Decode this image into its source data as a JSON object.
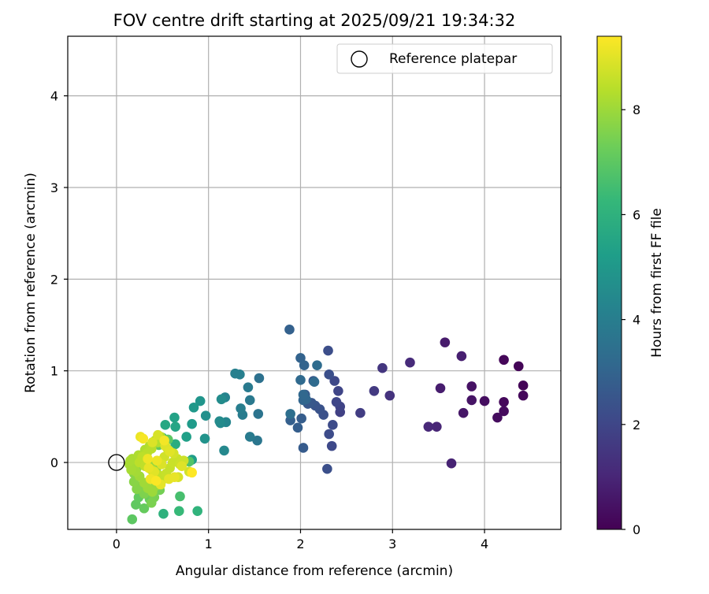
{
  "chart_data": {
    "type": "scatter",
    "title": "FOV centre drift starting at 2025/09/21 19:34:32",
    "xlabel": "Angular distance from reference (arcmin)",
    "ylabel": "Rotation from reference (arcmin)",
    "xlim": [
      -0.53,
      4.83
    ],
    "ylim": [
      -0.73,
      4.65
    ],
    "xticks": [
      0,
      1,
      2,
      3,
      4
    ],
    "yticks": [
      0,
      1,
      2,
      3,
      4
    ],
    "grid": true,
    "legend": {
      "placement": "upper-right",
      "entries": [
        "Reference platepar"
      ]
    },
    "reference_point": {
      "x": 0,
      "y": 0,
      "label": "Reference platepar"
    },
    "colorbar": {
      "label": "Hours from first FF file",
      "range": [
        0,
        9.4
      ],
      "ticks": [
        0,
        2,
        4,
        6,
        8
      ],
      "colormap": "viridis"
    },
    "series": [
      {
        "color_by": "hours",
        "x": [
          4.42,
          4.37,
          4.21,
          4.42,
          4.21,
          4.21,
          4.14,
          4.0,
          3.86,
          3.86,
          3.77,
          3.57,
          3.52,
          3.75,
          3.64,
          3.48,
          3.39,
          3.19,
          2.97,
          2.89,
          2.8,
          2.65,
          2.43,
          2.43,
          2.41,
          2.39,
          2.37,
          2.34,
          2.35,
          2.31,
          2.3,
          2.29,
          2.31,
          2.25,
          2.21,
          2.16,
          2.14,
          2.12,
          2.08,
          2.05,
          2.03,
          2.01,
          1.97,
          1.89,
          1.88,
          2.0,
          2.04,
          2.03,
          2.06,
          2.03,
          2.0,
          2.15,
          2.18,
          1.89
        ],
        "y": [
          0.84,
          1.05,
          1.12,
          0.73,
          0.66,
          0.56,
          0.49,
          0.67,
          0.83,
          0.68,
          0.54,
          1.31,
          0.81,
          1.16,
          -0.01,
          0.39,
          0.39,
          1.09,
          0.73,
          1.03,
          0.78,
          0.54,
          0.55,
          0.61,
          0.78,
          0.66,
          0.89,
          0.18,
          0.41,
          0.31,
          1.22,
          -0.07,
          0.96,
          0.52,
          0.58,
          0.62,
          0.89,
          0.65,
          0.64,
          0.74,
          0.16,
          0.48,
          0.38,
          0.46,
          1.45,
          1.14,
          1.06,
          0.68,
          0.69,
          0.74,
          0.9,
          0.88,
          1.06,
          0.53
        ],
        "hours": [
          0.1,
          0.1,
          0.15,
          0.2,
          0.2,
          0.25,
          0.3,
          0.35,
          0.45,
          0.5,
          0.55,
          0.7,
          0.75,
          0.8,
          0.9,
          1.0,
          1.05,
          1.15,
          1.4,
          1.5,
          1.6,
          1.7,
          1.8,
          1.9,
          1.95,
          2.0,
          2.05,
          2.1,
          2.15,
          2.2,
          2.25,
          2.3,
          2.3,
          2.35,
          2.4,
          2.45,
          2.5,
          2.55,
          2.6,
          2.65,
          2.7,
          2.75,
          2.8,
          2.85,
          2.9,
          2.95,
          3.0,
          3.05,
          3.1,
          3.15,
          3.2,
          3.25,
          3.3,
          3.4
        ]
      },
      {
        "color_by": "hours",
        "x": [
          1.55,
          1.54,
          1.53,
          1.45,
          1.43,
          1.45,
          1.37,
          1.35,
          1.34,
          1.29,
          1.18,
          1.19,
          1.17,
          1.13,
          1.12,
          1.14,
          0.97,
          0.96,
          0.91,
          0.84,
          0.82,
          0.82,
          0.76,
          0.63,
          0.64,
          0.53,
          0.5,
          0.64,
          0.51,
          0.88,
          0.68,
          0.69,
          0.79,
          0.56,
          0.46
        ],
        "y": [
          0.92,
          0.53,
          0.24,
          0.68,
          0.82,
          0.28,
          0.52,
          0.59,
          0.96,
          0.97,
          0.71,
          0.44,
          0.13,
          0.43,
          0.45,
          0.69,
          0.51,
          0.26,
          0.67,
          0.6,
          0.42,
          0.03,
          0.28,
          0.49,
          0.39,
          0.41,
          0.27,
          0.2,
          -0.56,
          -0.53,
          -0.53,
          -0.37,
          0.01,
          0.25,
          0.19
        ],
        "hours": [
          3.5,
          3.6,
          3.7,
          3.8,
          3.85,
          3.9,
          3.95,
          4.0,
          4.05,
          4.1,
          4.2,
          4.3,
          4.4,
          4.45,
          4.5,
          4.55,
          4.7,
          4.8,
          4.9,
          5.0,
          5.1,
          5.2,
          5.3,
          5.4,
          5.5,
          5.6,
          5.7,
          5.8,
          6.0,
          6.1,
          6.3,
          6.6,
          6.8,
          7.0,
          7.1
        ]
      },
      {
        "color_by": "hours",
        "x": [
          0.17,
          0.21,
          0.24,
          0.3,
          0.36,
          0.28,
          0.34,
          0.43,
          0.47,
          0.41,
          0.38,
          0.3,
          0.26,
          0.22,
          0.19,
          0.19,
          0.22,
          0.29,
          0.33,
          0.31,
          0.39,
          0.43,
          0.44,
          0.49,
          0.45,
          0.42,
          0.39,
          0.34,
          0.3,
          0.25,
          0.21,
          0.18,
          0.16,
          0.14,
          0.15,
          0.17,
          0.24,
          0.31,
          0.36,
          0.42,
          0.48,
          0.45,
          0.38,
          0.33,
          0.28,
          0.25,
          0.31,
          0.38,
          0.46,
          0.51,
          0.54,
          0.58,
          0.61,
          0.66,
          0.69,
          0.73,
          0.79,
          0.52,
          0.56,
          0.62,
          0.67,
          0.45,
          0.39,
          0.49,
          0.53,
          0.71,
          0.58,
          0.41,
          0.57,
          0.48,
          0.35,
          0.63,
          0.44,
          0.26,
          0.37,
          0.34,
          0.52,
          0.29,
          0.43,
          0.82
        ],
        "y": [
          -0.62,
          -0.46,
          -0.38,
          -0.5,
          -0.4,
          -0.3,
          -0.33,
          -0.24,
          -0.3,
          -0.38,
          -0.44,
          -0.34,
          -0.26,
          -0.29,
          -0.21,
          -0.12,
          -0.06,
          0.04,
          0.1,
          0.02,
          -0.02,
          -0.08,
          -0.12,
          -0.16,
          -0.2,
          -0.26,
          -0.32,
          -0.28,
          -0.22,
          -0.15,
          -0.1,
          -0.06,
          -0.08,
          -0.02,
          0.02,
          0.04,
          0.08,
          0.14,
          0.18,
          0.24,
          0.28,
          0.22,
          0.15,
          0.1,
          0.06,
          0.0,
          -0.04,
          -0.08,
          -0.14,
          -0.18,
          -0.12,
          -0.06,
          0.0,
          0.04,
          -0.02,
          0.02,
          -0.1,
          0.06,
          0.14,
          0.1,
          -0.16,
          0.3,
          0.22,
          -0.02,
          0.18,
          -0.04,
          0.12,
          -0.1,
          -0.18,
          -0.24,
          -0.06,
          -0.16,
          0.02,
          0.28,
          -0.18,
          0.04,
          0.24,
          0.26,
          -0.2,
          -0.11
        ],
        "hours": [
          7.0,
          7.05,
          7.1,
          7.15,
          7.2,
          7.25,
          7.3,
          7.35,
          7.4,
          7.45,
          7.5,
          7.55,
          7.6,
          7.65,
          7.7,
          7.7,
          7.75,
          7.75,
          7.8,
          7.8,
          7.85,
          7.85,
          7.9,
          7.9,
          7.95,
          7.95,
          8.0,
          8.0,
          8.05,
          8.05,
          8.1,
          8.1,
          8.15,
          8.15,
          8.2,
          8.2,
          8.25,
          8.25,
          8.3,
          8.3,
          8.35,
          8.35,
          8.4,
          8.4,
          8.45,
          8.45,
          8.5,
          8.5,
          8.55,
          8.55,
          8.6,
          8.6,
          8.65,
          8.65,
          8.7,
          8.7,
          8.75,
          8.75,
          8.8,
          8.8,
          8.85,
          8.85,
          8.9,
          8.9,
          8.95,
          8.95,
          9.0,
          9.0,
          9.05,
          9.05,
          9.1,
          9.1,
          9.15,
          9.15,
          9.2,
          9.2,
          9.25,
          9.3,
          9.35,
          9.4
        ]
      }
    ],
    "colors": {
      "viridis_stops": [
        "#440154",
        "#482878",
        "#3e4989",
        "#31688e",
        "#26828e",
        "#1f9e89",
        "#35b779",
        "#6ece58",
        "#b5de2b",
        "#fde725"
      ],
      "reference_marker_edge": "#000000",
      "grid": "#b0b0b0"
    }
  }
}
